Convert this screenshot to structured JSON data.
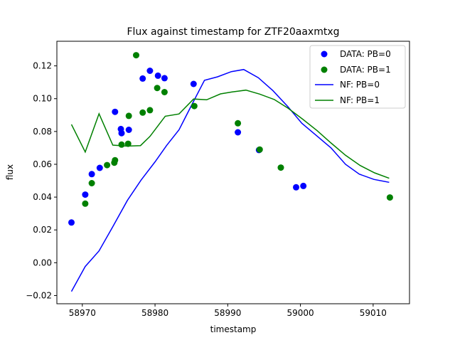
{
  "chart_data": {
    "type": "scatter",
    "title": "Flux against timestamp for ZTF20aaxmtxg",
    "xlabel": "timestamp",
    "ylabel": "flux",
    "xlim": [
      58966.5,
      59015.0
    ],
    "ylim": [
      -0.025,
      0.135
    ],
    "xticks": [
      58970,
      58980,
      58990,
      59000,
      59010
    ],
    "xtick_labels": [
      "58970",
      "58980",
      "58990",
      "59000",
      "59010"
    ],
    "yticks": [
      -0.02,
      0.0,
      0.02,
      0.04,
      0.06,
      0.08,
      0.1,
      0.12
    ],
    "ytick_labels": [
      "−0.02",
      "0.00",
      "0.02",
      "0.04",
      "0.06",
      "0.08",
      "0.10",
      "0.12"
    ],
    "grid": false,
    "legend_position": "top-right",
    "series": [
      {
        "name": "DATA: PB=0",
        "kind": "scatter",
        "color": "#0000ff",
        "x": [
          58968.5,
          58970.4,
          58971.3,
          58972.4,
          58974.5,
          58975.3,
          58975.4,
          58976.4,
          58978.3,
          58979.3,
          58980.4,
          58981.3,
          58985.3,
          58991.4,
          58994.3,
          58999.4,
          59000.4
        ],
        "y": [
          0.0245,
          0.0415,
          0.054,
          0.0578,
          0.092,
          0.0815,
          0.079,
          0.081,
          0.1123,
          0.117,
          0.114,
          0.1125,
          0.109,
          0.0795,
          0.0687,
          0.046,
          0.0468
        ]
      },
      {
        "name": "DATA: PB=1",
        "kind": "scatter",
        "color": "#008000",
        "x": [
          58970.4,
          58971.3,
          58973.4,
          58974.4,
          58974.5,
          58975.4,
          58976.3,
          58976.4,
          58977.4,
          58978.3,
          58979.3,
          58980.3,
          58981.3,
          58985.4,
          58991.4,
          58994.4,
          58997.3,
          59012.3
        ],
        "y": [
          0.036,
          0.0485,
          0.0595,
          0.061,
          0.0625,
          0.072,
          0.0725,
          0.0895,
          0.1265,
          0.0915,
          0.093,
          0.1065,
          0.104,
          0.0955,
          0.085,
          0.069,
          0.058,
          0.0398
        ]
      },
      {
        "name": "NF: PB=0",
        "kind": "line",
        "color": "#0000ff",
        "x": [
          58968.5,
          58970.4,
          58972.3,
          58974.2,
          58976.2,
          58978.1,
          58980.0,
          58981.6,
          58983.3,
          58985.2,
          58986.8,
          58988.6,
          58990.5,
          58992.2,
          58994.2,
          58996.2,
          58998.3,
          59000.2,
          59002.2,
          59004.2,
          59006.2,
          59008.1,
          59010.1,
          59012.2
        ],
        "y": [
          -0.0175,
          -0.0023,
          0.0072,
          0.022,
          0.038,
          0.0505,
          0.0615,
          0.0715,
          0.081,
          0.0975,
          0.1112,
          0.1133,
          0.1165,
          0.1178,
          0.1128,
          0.105,
          0.095,
          0.085,
          0.0775,
          0.07,
          0.06,
          0.054,
          0.0508,
          0.049
        ]
      },
      {
        "name": "NF: PB=1",
        "kind": "line",
        "color": "#008000",
        "x": [
          58968.5,
          58970.4,
          58972.3,
          58974.2,
          58976.1,
          58978.0,
          58979.3,
          58981.4,
          58983.3,
          58985.3,
          58987.1,
          58989.0,
          58990.6,
          58992.5,
          58994.4,
          58996.4,
          58998.3,
          59000.3,
          59002.3,
          59004.2,
          59006.2,
          59008.2,
          59010.2,
          59012.2
        ],
        "y": [
          0.0843,
          0.0675,
          0.0908,
          0.0717,
          0.0711,
          0.0714,
          0.077,
          0.0893,
          0.0907,
          0.0998,
          0.0993,
          0.1029,
          0.1041,
          0.1052,
          0.1028,
          0.0995,
          0.0942,
          0.0875,
          0.0805,
          0.073,
          0.0655,
          0.0593,
          0.0548,
          0.0515
        ]
      }
    ]
  }
}
